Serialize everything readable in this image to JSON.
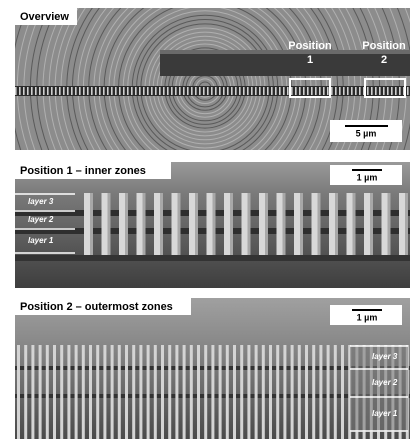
{
  "panels": [
    {
      "title": "Overview",
      "scale_bar": "5 µm",
      "markers": [
        {
          "label": "Position",
          "number": "1"
        },
        {
          "label": "Position",
          "number": "2"
        }
      ]
    },
    {
      "title": "Position 1 – inner zones",
      "scale_bar": "1 µm",
      "layers": [
        "layer 3",
        "layer 2",
        "layer 1"
      ]
    },
    {
      "title": "Position 2 – outermost zones",
      "scale_bar": "1 µm",
      "layers": [
        "layer 3",
        "layer 2",
        "layer 1"
      ]
    }
  ]
}
